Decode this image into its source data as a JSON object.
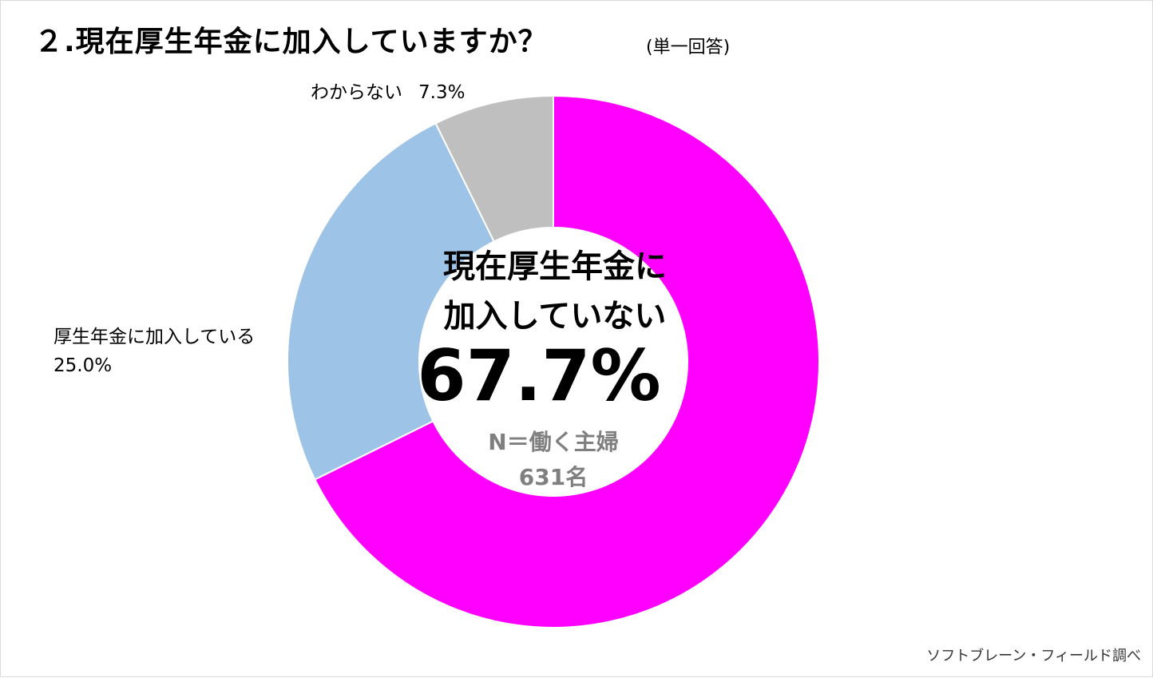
{
  "title": "２.現在厚生年金に加入していますか？",
  "subtitle": "(単一回答)",
  "source": "ソフトブレーン・フィールド調べ",
  "chart_data": {
    "type": "pie",
    "variant": "donut",
    "slices": [
      {
        "label": "現在厚生年金に加入していない",
        "value": 67.7,
        "value_text": "67.7%",
        "color": "#ff00ff"
      },
      {
        "label": "厚生年金に加入している",
        "value": 25.0,
        "value_text": "25.0%",
        "color": "#9dc3e6"
      },
      {
        "label": "わからない",
        "value": 7.3,
        "value_text": "7.3%",
        "color": "#bfbfbf"
      }
    ],
    "center": {
      "title_line1": "現在厚生年金に",
      "title_line2": "加入していない",
      "value": "67.7%",
      "n_line1": "N＝働く主婦",
      "n_line2": "631名"
    },
    "outside_labels": {
      "dont_know": {
        "name": "わからない",
        "value": "7.3%"
      },
      "enrolled": {
        "name": "厚生年金に加入している",
        "value": "25.0%"
      }
    }
  }
}
